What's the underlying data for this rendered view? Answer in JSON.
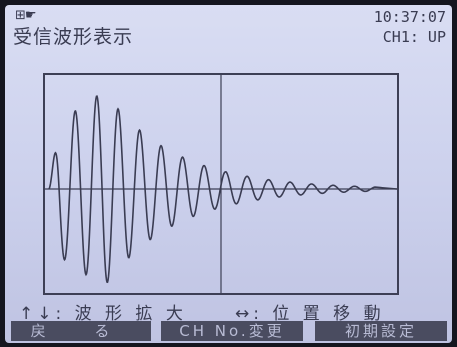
{
  "header": {
    "status_icons": "⊞☛",
    "title": "受信波形表示",
    "time": "10:37:07",
    "channel": "CH1: UP"
  },
  "hints": {
    "vertical": "↑↓: 波 形 拡 大",
    "horizontal": "↔: 位 置 移 動"
  },
  "softkeys": {
    "back": "戻 る",
    "ch_change": "CH No.変更",
    "initial_settings": "初期設定"
  },
  "colors": {
    "screen_bg": "#d0d4ee",
    "trace": "#3a3c52",
    "softkey_bg": "#4a4c60"
  }
}
